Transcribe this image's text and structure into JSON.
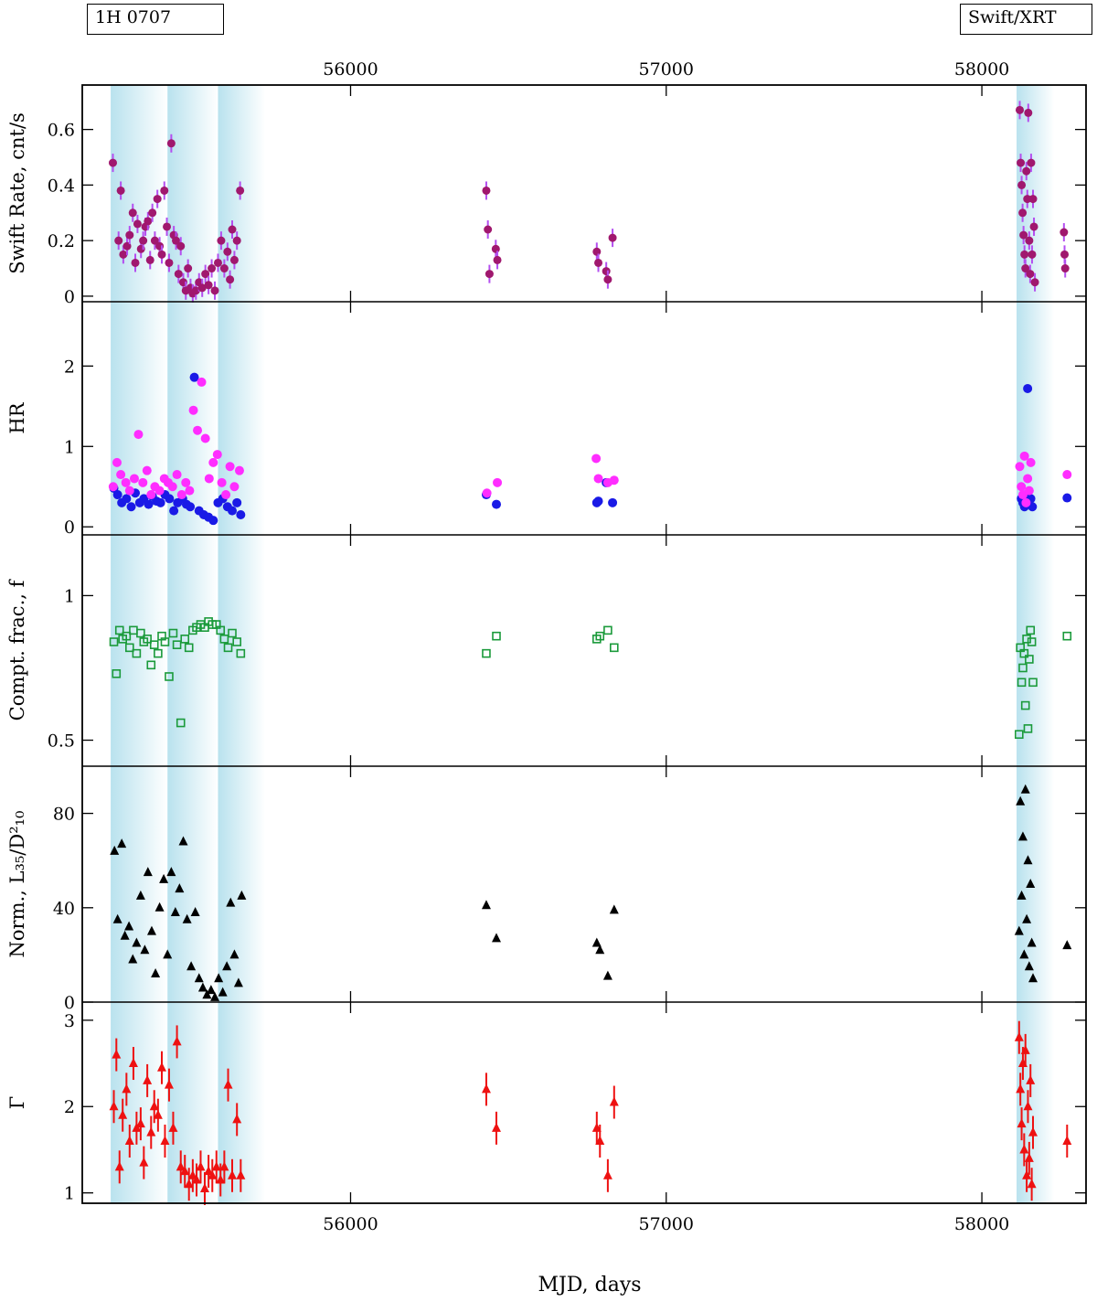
{
  "header": {
    "source_label": "1H 0707",
    "instrument_label": "Swift/XRT"
  },
  "chart_data": {
    "type": "scatter",
    "xlabel": "MJD, days",
    "xlim": [
      55150,
      58330
    ],
    "xticks": [
      56000,
      57000,
      58000
    ],
    "shaded_intervals": [
      [
        55240,
        55420
      ],
      [
        55420,
        55580
      ],
      [
        55580,
        55730
      ],
      [
        58110,
        58230
      ]
    ],
    "colors": {
      "rate": "#a0186e",
      "rate_err": "#b44ef0",
      "hr1": "#1a1ae6",
      "hr2": "#ff2dff",
      "f": "#1a9a3a",
      "norm": "#000000",
      "gamma": "#ee1111",
      "shade": "#b9e2ee"
    },
    "panels": [
      {
        "id": "rate",
        "ylabel": "Swift Rate, cnt/s",
        "ylim": [
          -0.02,
          0.76
        ],
        "yticks": [
          0,
          0.2,
          0.4,
          0.6
        ],
        "ytick_labels": [
          "0",
          "0.2",
          "0.4",
          "0.6"
        ],
        "marker": "circle",
        "series": [
          {
            "x": [
              55247,
              55265,
              55272,
              55280,
              55292,
              55300,
              55310,
              55318,
              55325,
              55336,
              55343,
              55350,
              55358,
              55365,
              55372,
              55380,
              55388,
              55395,
              55402,
              55410,
              55418,
              55425,
              55432,
              55440,
              55447,
              55455,
              55462,
              55470,
              55478,
              55485,
              55493,
              55500,
              55510,
              55520,
              55530,
              55540,
              55550,
              55560,
              55570,
              55580,
              55590,
              55600,
              55610,
              55618,
              55625,
              55632,
              55640,
              55650,
              56430,
              56435,
              56440,
              56460,
              56465,
              56780,
              56785,
              56810,
              56815,
              56830,
              58120,
              58123,
              58126,
              58129,
              58132,
              58135,
              58138,
              58141,
              58144,
              58147,
              58150,
              58153,
              58156,
              58159,
              58162,
              58165,
              58168,
              58260,
              58262,
              58264
            ],
            "y": [
              0.48,
              0.2,
              0.38,
              0.15,
              0.18,
              0.22,
              0.3,
              0.12,
              0.26,
              0.17,
              0.2,
              0.25,
              0.27,
              0.13,
              0.3,
              0.2,
              0.35,
              0.18,
              0.15,
              0.38,
              0.25,
              0.12,
              0.55,
              0.22,
              0.2,
              0.08,
              0.18,
              0.05,
              0.02,
              0.1,
              0.03,
              0.01,
              0.02,
              0.05,
              0.03,
              0.08,
              0.04,
              0.1,
              0.02,
              0.12,
              0.2,
              0.1,
              0.16,
              0.06,
              0.24,
              0.13,
              0.2,
              0.38,
              0.38,
              0.24,
              0.08,
              0.17,
              0.13,
              0.16,
              0.12,
              0.09,
              0.06,
              0.21,
              0.67,
              0.48,
              0.4,
              0.3,
              0.22,
              0.15,
              0.1,
              0.45,
              0.35,
              0.66,
              0.2,
              0.08,
              0.48,
              0.15,
              0.35,
              0.25,
              0.05,
              0.23,
              0.15,
              0.1
            ]
          }
        ]
      },
      {
        "id": "hr",
        "ylabel": "HR",
        "ylim": [
          -0.1,
          2.8
        ],
        "yticks": [
          0,
          1,
          2
        ],
        "ytick_labels": [
          "0",
          "1",
          "2"
        ],
        "marker": "circle",
        "series": [
          {
            "color_key": "hr1",
            "x": [
              55250,
              55262,
              55275,
              55290,
              55305,
              55318,
              55332,
              55345,
              55360,
              55372,
              55385,
              55398,
              55412,
              55426,
              55440,
              55452,
              55468,
              55480,
              55492,
              55505,
              55520,
              55535,
              55550,
              55565,
              55580,
              55595,
              55610,
              55625,
              55640,
              55652,
              56430,
              56462,
              56780,
              56785,
              56810,
              56830,
              58125,
              58130,
              58135,
              58140,
              58145,
              58150,
              58155,
              58160,
              58270
            ],
            "y": [
              0.48,
              0.4,
              0.3,
              0.35,
              0.25,
              0.42,
              0.3,
              0.35,
              0.28,
              0.38,
              0.32,
              0.3,
              0.4,
              0.35,
              0.2,
              0.3,
              0.35,
              0.28,
              0.25,
              1.86,
              0.2,
              0.15,
              0.12,
              0.08,
              0.3,
              0.35,
              0.25,
              0.2,
              0.3,
              0.15,
              0.4,
              0.28,
              0.3,
              0.32,
              0.55,
              0.3,
              0.35,
              0.3,
              0.25,
              0.4,
              1.72,
              0.28,
              0.35,
              0.25,
              0.36
            ]
          },
          {
            "color_key": "hr2",
            "x": [
              55248,
              55260,
              55272,
              55288,
              55300,
              55315,
              55328,
              55342,
              55355,
              55368,
              55380,
              55395,
              55410,
              55422,
              55436,
              55450,
              55465,
              55478,
              55490,
              55502,
              55515,
              55528,
              55540,
              55552,
              55565,
              55578,
              55592,
              55605,
              55618,
              55632,
              55648,
              56432,
              56465,
              56778,
              56785,
              56815,
              56835,
              58120,
              58125,
              58130,
              58135,
              58140,
              58145,
              58150,
              58155,
              58270
            ],
            "y": [
              0.5,
              0.8,
              0.65,
              0.55,
              0.45,
              0.6,
              1.15,
              0.55,
              0.7,
              0.4,
              0.5,
              0.45,
              0.6,
              0.55,
              0.5,
              0.65,
              0.4,
              0.55,
              0.45,
              1.45,
              1.2,
              1.8,
              1.1,
              0.6,
              0.8,
              0.9,
              0.55,
              0.4,
              0.75,
              0.5,
              0.7,
              0.42,
              0.55,
              0.85,
              0.6,
              0.55,
              0.58,
              0.75,
              0.5,
              0.4,
              0.88,
              0.3,
              0.6,
              0.45,
              0.8,
              0.65
            ]
          }
        ]
      },
      {
        "id": "f",
        "ylabel": "Compt. frac., f",
        "ylim": [
          0.41,
          1.21
        ],
        "yticks": [
          0.5,
          1
        ],
        "ytick_labels": [
          "0.5",
          "1"
        ],
        "marker": "square-open",
        "series": [
          {
            "x": [
              55250,
              55258,
              55268,
              55278,
              55290,
              55300,
              55312,
              55322,
              55335,
              55345,
              55356,
              55368,
              55378,
              55390,
              55402,
              55412,
              55425,
              55438,
              55450,
              55462,
              55475,
              55488,
              55500,
              55512,
              55525,
              55538,
              55550,
              55562,
              55575,
              55588,
              55600,
              55612,
              55625,
              55640,
              55652,
              56430,
              56462,
              56780,
              56790,
              56815,
              56835,
              58118,
              58122,
              58126,
              58130,
              58134,
              58138,
              58142,
              58146,
              58150,
              58154,
              58158,
              58162,
              58270
            ],
            "y": [
              0.84,
              0.73,
              0.88,
              0.85,
              0.86,
              0.82,
              0.88,
              0.8,
              0.87,
              0.84,
              0.85,
              0.76,
              0.83,
              0.8,
              0.86,
              0.84,
              0.72,
              0.87,
              0.83,
              0.56,
              0.85,
              0.82,
              0.88,
              0.89,
              0.9,
              0.89,
              0.91,
              0.9,
              0.9,
              0.88,
              0.85,
              0.82,
              0.87,
              0.84,
              0.8,
              0.8,
              0.86,
              0.85,
              0.86,
              0.88,
              0.82,
              0.52,
              0.82,
              0.7,
              0.75,
              0.8,
              0.62,
              0.85,
              0.54,
              0.78,
              0.88,
              0.84,
              0.7,
              0.86
            ]
          }
        ]
      },
      {
        "id": "norm",
        "ylabel": "Norm., L₃₅/D²₁₀",
        "ylim": [
          0,
          100
        ],
        "yticks": [
          0,
          40,
          80
        ],
        "ytick_labels": [
          "0",
          "40",
          "80"
        ],
        "marker": "triangle",
        "series": [
          {
            "x": [
              55252,
              55262,
              55275,
              55285,
              55298,
              55310,
              55322,
              55335,
              55348,
              55358,
              55370,
              55382,
              55395,
              55408,
              55420,
              55432,
              55445,
              55458,
              55470,
              55482,
              55495,
              55508,
              55520,
              55532,
              55545,
              55558,
              55570,
              55582,
              55595,
              55608,
              55620,
              55632,
              55645,
              55655,
              56430,
              56462,
              56780,
              56790,
              56815,
              56835,
              58118,
              58122,
              58126,
              58130,
              58134,
              58138,
              58142,
              58146,
              58150,
              58154,
              58158,
              58162,
              58270
            ],
            "y": [
              64,
              35,
              67,
              28,
              32,
              18,
              25,
              45,
              22,
              55,
              30,
              12,
              40,
              52,
              20,
              55,
              38,
              48,
              68,
              35,
              15,
              38,
              10,
              6,
              3,
              5,
              2,
              10,
              4,
              15,
              42,
              20,
              8,
              45,
              41,
              27,
              25,
              22,
              11,
              39,
              30,
              85,
              45,
              70,
              20,
              90,
              35,
              60,
              15,
              50,
              25,
              10,
              24
            ]
          }
        ]
      },
      {
        "id": "gamma",
        "ylabel": "Γ",
        "ylim": [
          0.88,
          3.21
        ],
        "yticks": [
          1,
          2,
          3
        ],
        "ytick_labels": [
          "1",
          "2",
          "3"
        ],
        "marker": "triangle",
        "series": [
          {
            "x": [
              55250,
              55258,
              55268,
              55278,
              55290,
              55300,
              55312,
              55322,
              55335,
              55345,
              55356,
              55368,
              55378,
              55390,
              55402,
              55412,
              55425,
              55438,
              55450,
              55462,
              55475,
              55488,
              55500,
              55512,
              55525,
              55538,
              55550,
              55562,
              55575,
              55588,
              55600,
              55612,
              55625,
              55640,
              55652,
              56430,
              56462,
              56780,
              56790,
              56815,
              56835,
              58118,
              58122,
              58126,
              58130,
              58134,
              58138,
              58142,
              58146,
              58150,
              58154,
              58158,
              58162,
              58270
            ],
            "y": [
              2.0,
              2.6,
              1.3,
              1.9,
              2.2,
              1.6,
              2.5,
              1.75,
              1.8,
              1.35,
              2.3,
              1.7,
              2.0,
              1.9,
              2.45,
              1.6,
              2.25,
              1.75,
              2.75,
              1.3,
              1.25,
              1.1,
              1.2,
              1.15,
              1.3,
              1.05,
              1.25,
              1.2,
              1.3,
              1.15,
              1.3,
              2.25,
              1.2,
              1.85,
              1.2,
              2.2,
              1.75,
              1.75,
              1.6,
              1.2,
              2.05,
              2.8,
              2.2,
              1.8,
              2.5,
              1.5,
              2.65,
              1.2,
              2.0,
              1.4,
              2.3,
              1.1,
              1.7,
              1.6
            ]
          }
        ]
      }
    ]
  }
}
